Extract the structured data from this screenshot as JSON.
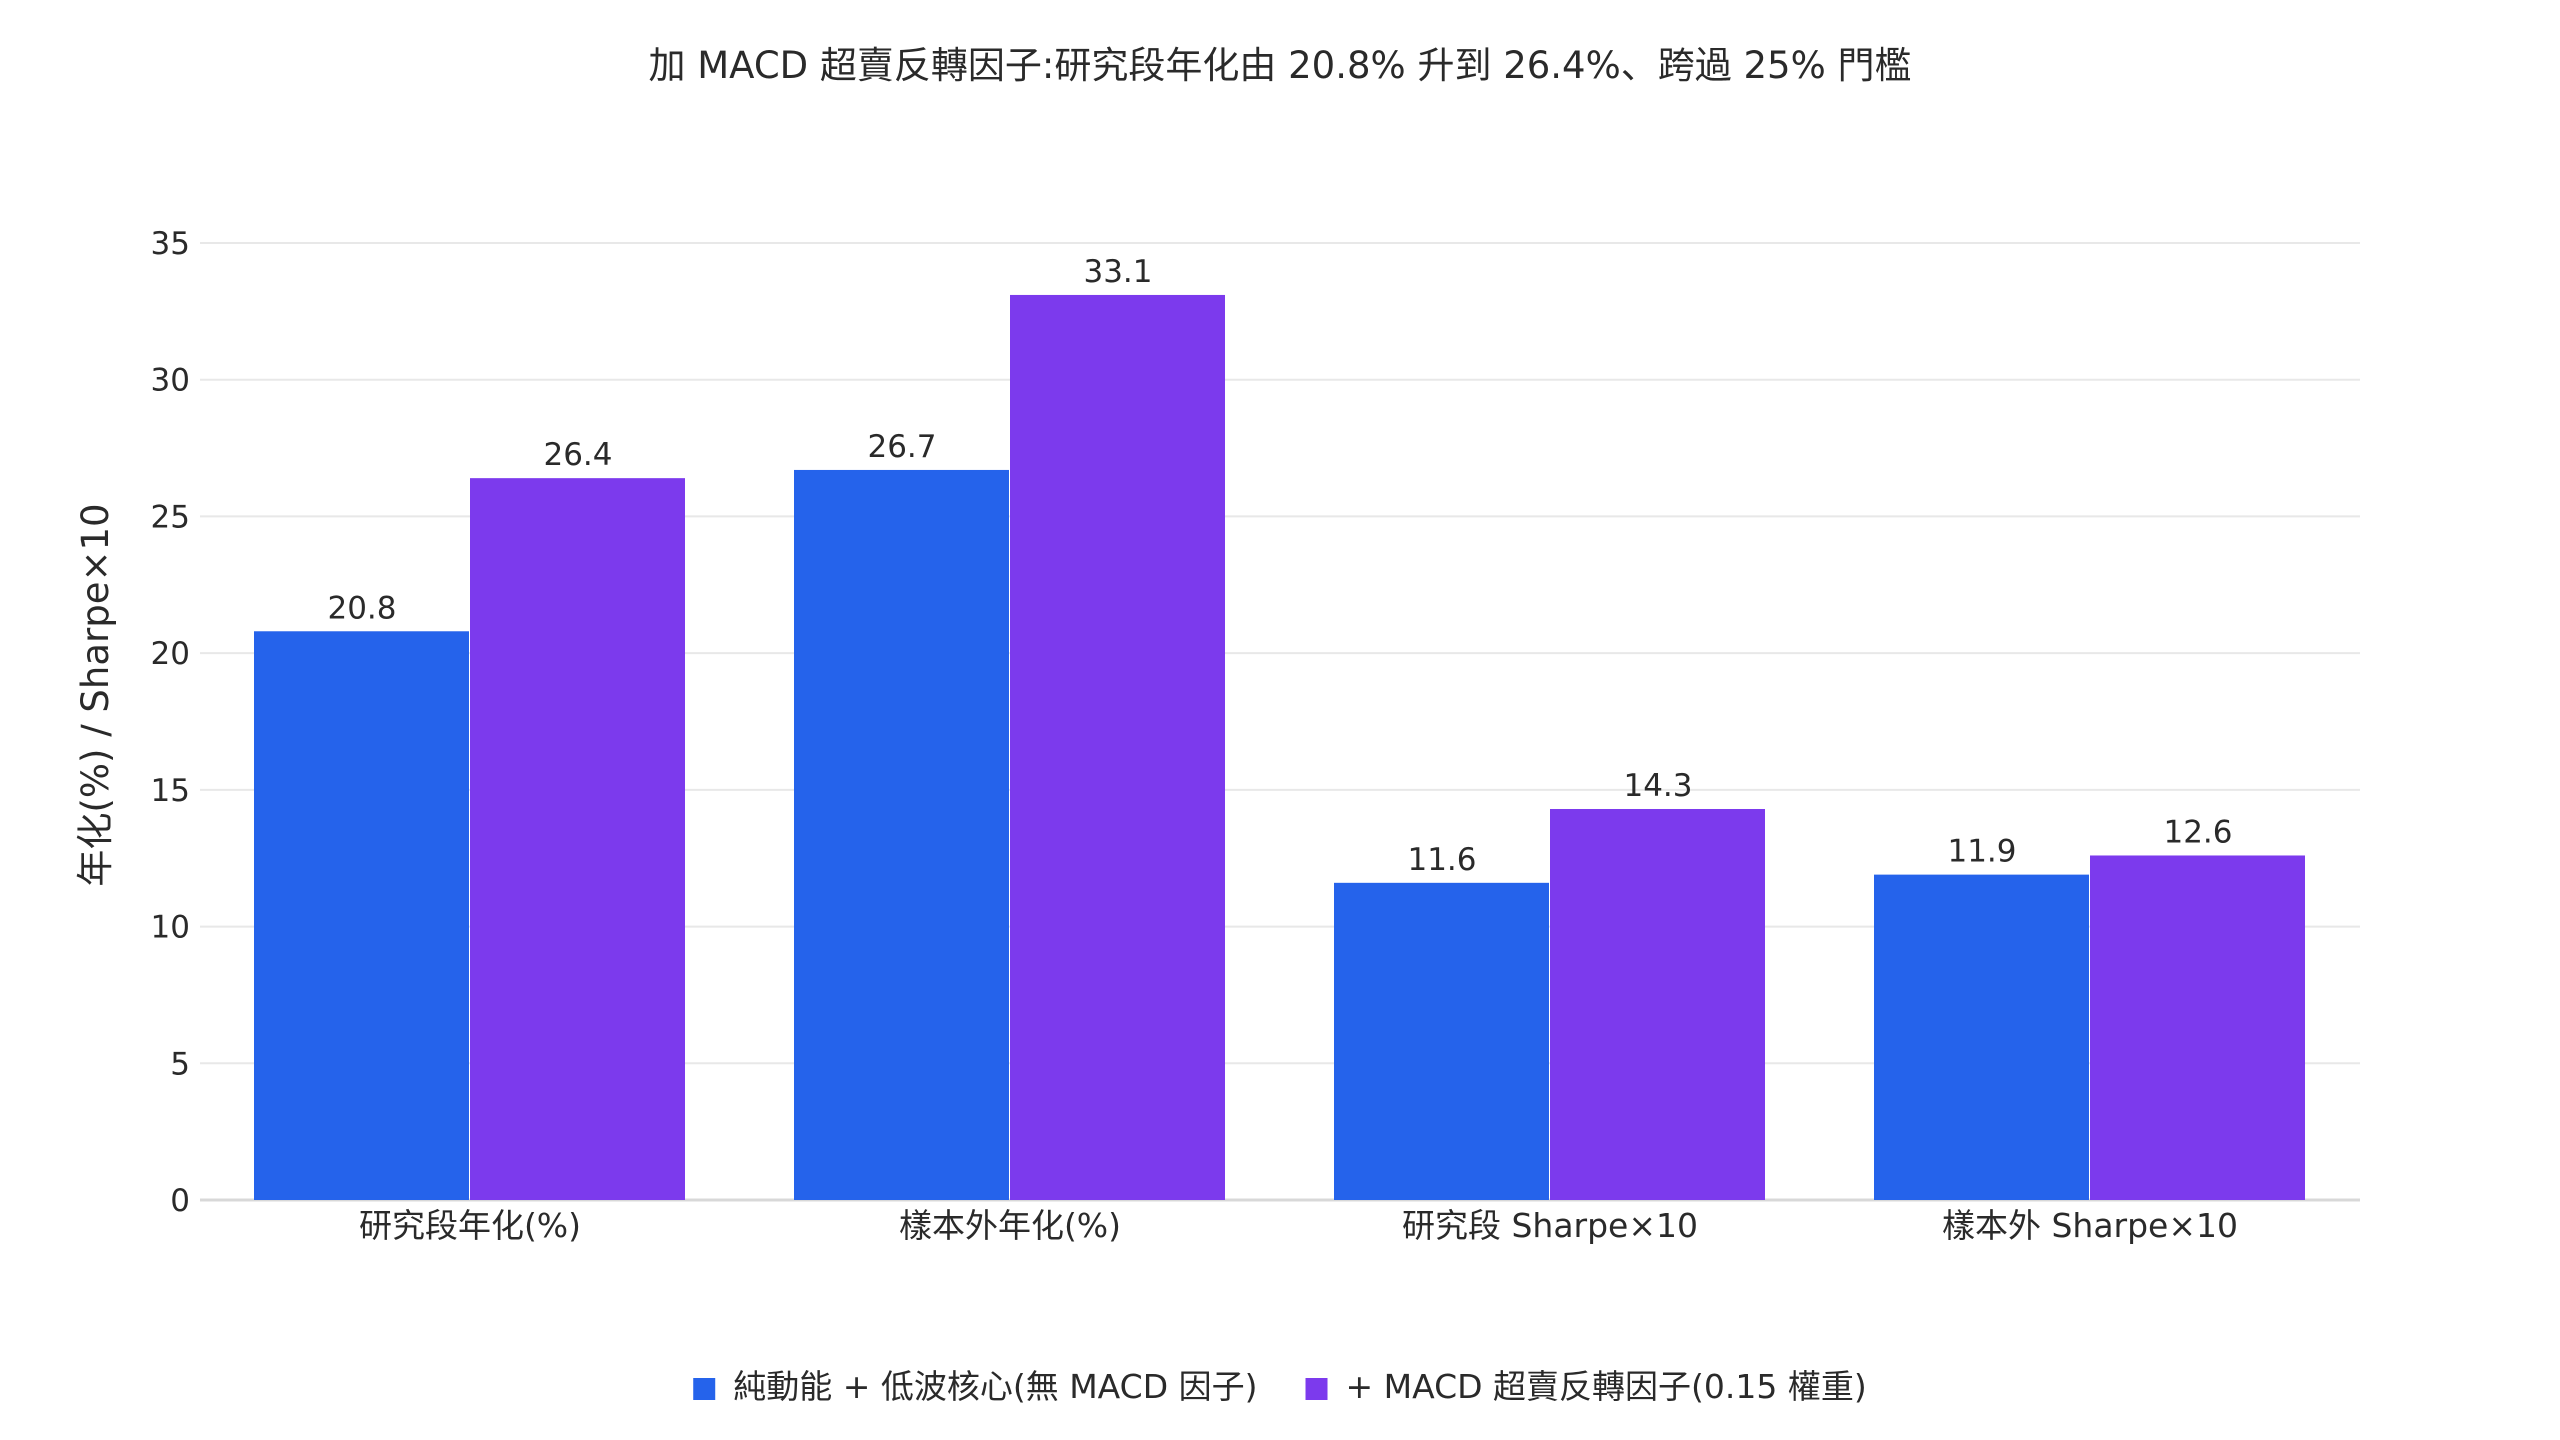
{
  "chart_data": {
    "type": "bar",
    "title": "加 MACD 超賣反轉因子:研究段年化由 20.8% 升到 26.4%、跨過 25% 門檻",
    "xlabel": "",
    "ylabel": "年化(%) / Sharpe×10",
    "ylim": [
      0,
      35
    ],
    "yticks": [
      0,
      5,
      10,
      15,
      20,
      25,
      30,
      35
    ],
    "grid": true,
    "legend_position": "bottom-center",
    "categories": [
      "研究段年化(%)",
      "樣本外年化(%)",
      "研究段 Sharpe×10",
      "樣本外 Sharpe×10"
    ],
    "series": [
      {
        "name": "純動能 + 低波核心(無 MACD 因子)",
        "color": "#2563eb",
        "values": [
          20.8,
          26.7,
          11.6,
          11.9
        ]
      },
      {
        "name": "+ MACD 超賣反轉因子(0.15 權重)",
        "color": "#7c3aed",
        "values": [
          26.4,
          33.1,
          14.3,
          12.6
        ]
      }
    ]
  }
}
